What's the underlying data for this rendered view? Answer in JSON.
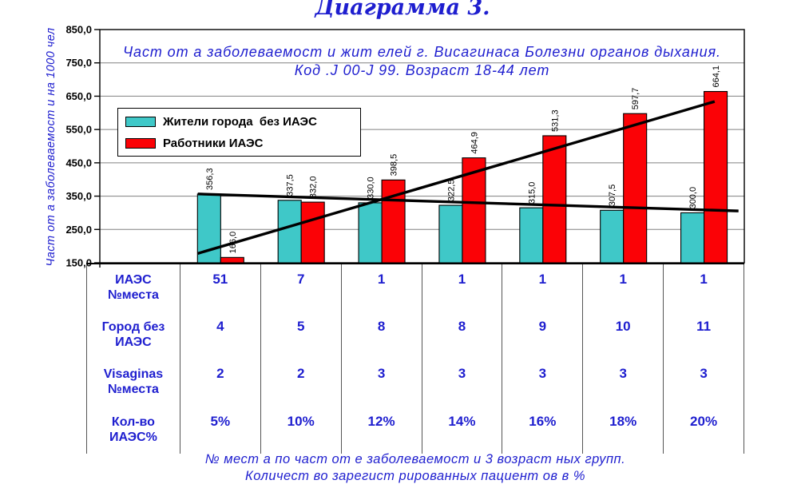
{
  "title": "Диаграмма 3.",
  "colors": {
    "accent_blue": "#1E1ECF",
    "series_residents": "#3FC8C8",
    "series_workers": "#FB0206",
    "gridline": "#808080",
    "axis": "#000000",
    "table_line": "#555555"
  },
  "chart_data": {
    "type": "bar",
    "title_lines": [
      "Част от а заболеваемост и жит елей г. Висагинаса Болезни органов дыхания.",
      "Код .J 00-J 99. Возраст  18-44 лет"
    ],
    "y_axis_title": "Част от а заболеваемост и на 1000 чел",
    "ylim": [
      150,
      850
    ],
    "y_tick_step": 100,
    "y_tick_labels": [
      "850,0",
      "750,0",
      "650,0",
      "550,0",
      "450,0",
      "350,0",
      "250,0",
      "150,0"
    ],
    "grid": true,
    "legend_position": "top-left",
    "series": [
      {
        "name": "Жители города  без ИАЭС",
        "color": "#3FC8C8",
        "values": [
          356.3,
          337.5,
          330.0,
          322.5,
          315.0,
          307.5,
          300.0
        ],
        "labels": [
          "356,3",
          "337,5",
          "330,0",
          "322,5",
          "315,0",
          "307,5",
          "300,0"
        ]
      },
      {
        "name": "Работники ИАЭС",
        "color": "#FB0206",
        "values": [
          166.0,
          332.0,
          398.5,
          464.9,
          531.3,
          597.7,
          664.1
        ],
        "labels": [
          "166,0",
          "332,0",
          "398,5",
          "464,9",
          "531,3",
          "597,7",
          "664,1"
        ]
      }
    ],
    "trendlines": [
      {
        "series": "Жители города без ИАЭС",
        "start_frac": 0.152,
        "start_value": 356.5,
        "end_frac": 0.991,
        "end_value": 305.5
      },
      {
        "series": "Работники ИАЭС",
        "start_frac": 0.152,
        "start_value": 178.0,
        "end_frac": 0.954,
        "end_value": 634.0
      }
    ],
    "data_table": {
      "rows": [
        {
          "label": "ИАЭС\n№места",
          "values": [
            "51",
            "7",
            "1",
            "1",
            "1",
            "1",
            "1"
          ]
        },
        {
          "label": "Город без\nИАЭС",
          "values": [
            "4",
            "5",
            "8",
            "8",
            "9",
            "10",
            "11"
          ]
        },
        {
          "label": "Visaginas\n№места",
          "values": [
            "2",
            "2",
            "3",
            "3",
            "3",
            "3",
            "3"
          ]
        },
        {
          "label": "Кол-во\nИАЭС%",
          "values": [
            "5%",
            "10%",
            "12%",
            "14%",
            "16%",
            "18%",
            "20%"
          ]
        }
      ]
    }
  },
  "footer_lines": [
    "№ мест а по част от е заболеваемост и 3 возраст ных групп.",
    "Количест во зарегист рированных пациент ов в %"
  ]
}
